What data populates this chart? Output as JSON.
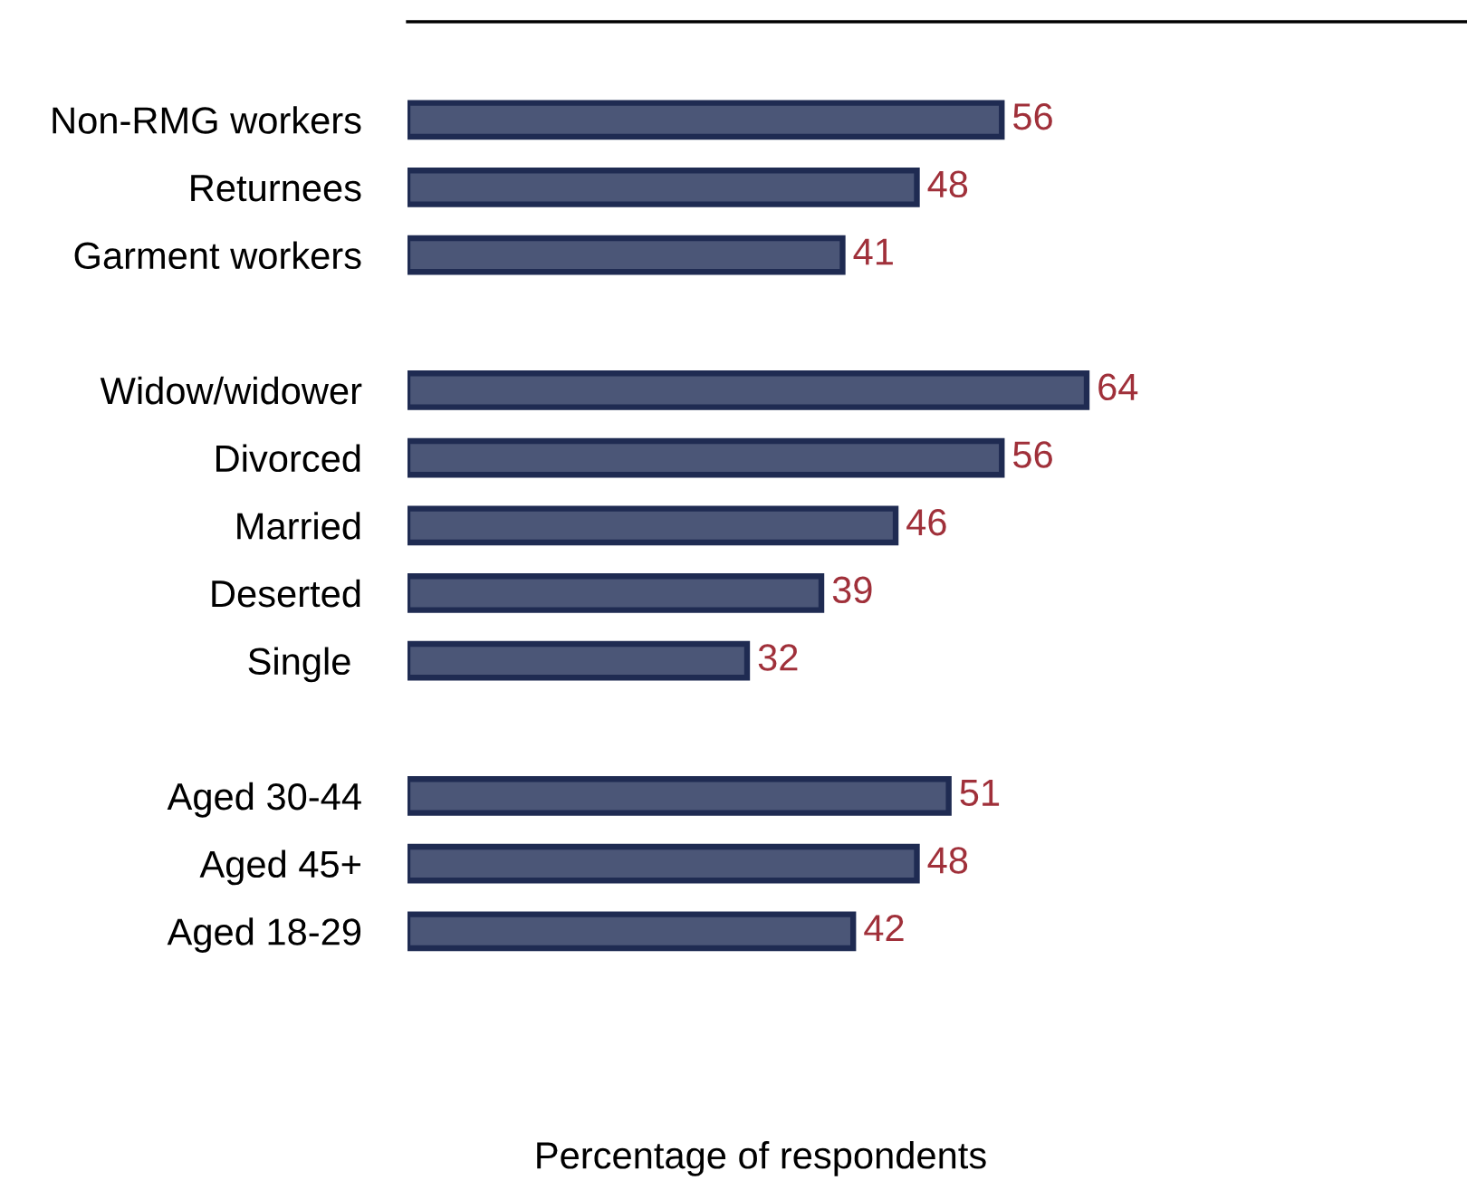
{
  "chart_data": {
    "type": "bar",
    "orientation": "horizontal",
    "xlabel": "Percentage of respondents",
    "categories": [
      "Non-RMG workers",
      "Returnees",
      "Garment workers",
      null,
      "Widow/widower",
      "Divorced",
      "Married",
      "Deserted",
      "Single ",
      null,
      "Aged 30-44",
      "Aged 45+",
      "Aged 18-29"
    ],
    "values": [
      56,
      48,
      41,
      null,
      64,
      56,
      46,
      39,
      32,
      null,
      51,
      48,
      42
    ],
    "color": "#4b5677",
    "data_labels": true,
    "grid": false,
    "legend": false
  }
}
